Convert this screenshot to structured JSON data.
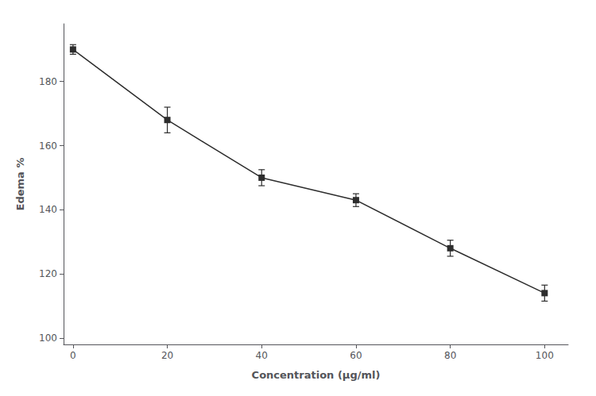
{
  "chart_data": {
    "type": "line",
    "x": [
      0,
      20,
      40,
      60,
      80,
      100
    ],
    "values": [
      190,
      168,
      150,
      143,
      128,
      114
    ],
    "yerr": [
      1.5,
      4.0,
      2.5,
      2.0,
      2.5,
      2.5
    ],
    "xlabel": "Concentration (μg/ml)",
    "ylabel": "Edema %",
    "xlim": [
      -2,
      105
    ],
    "ylim": [
      98,
      198
    ],
    "xticks": [
      0,
      20,
      40,
      60,
      80,
      100
    ],
    "yticks": [
      100,
      120,
      140,
      160,
      180
    ],
    "color": "#2d2d2d",
    "marker": "square",
    "line_style": "solid",
    "grid": false
  }
}
